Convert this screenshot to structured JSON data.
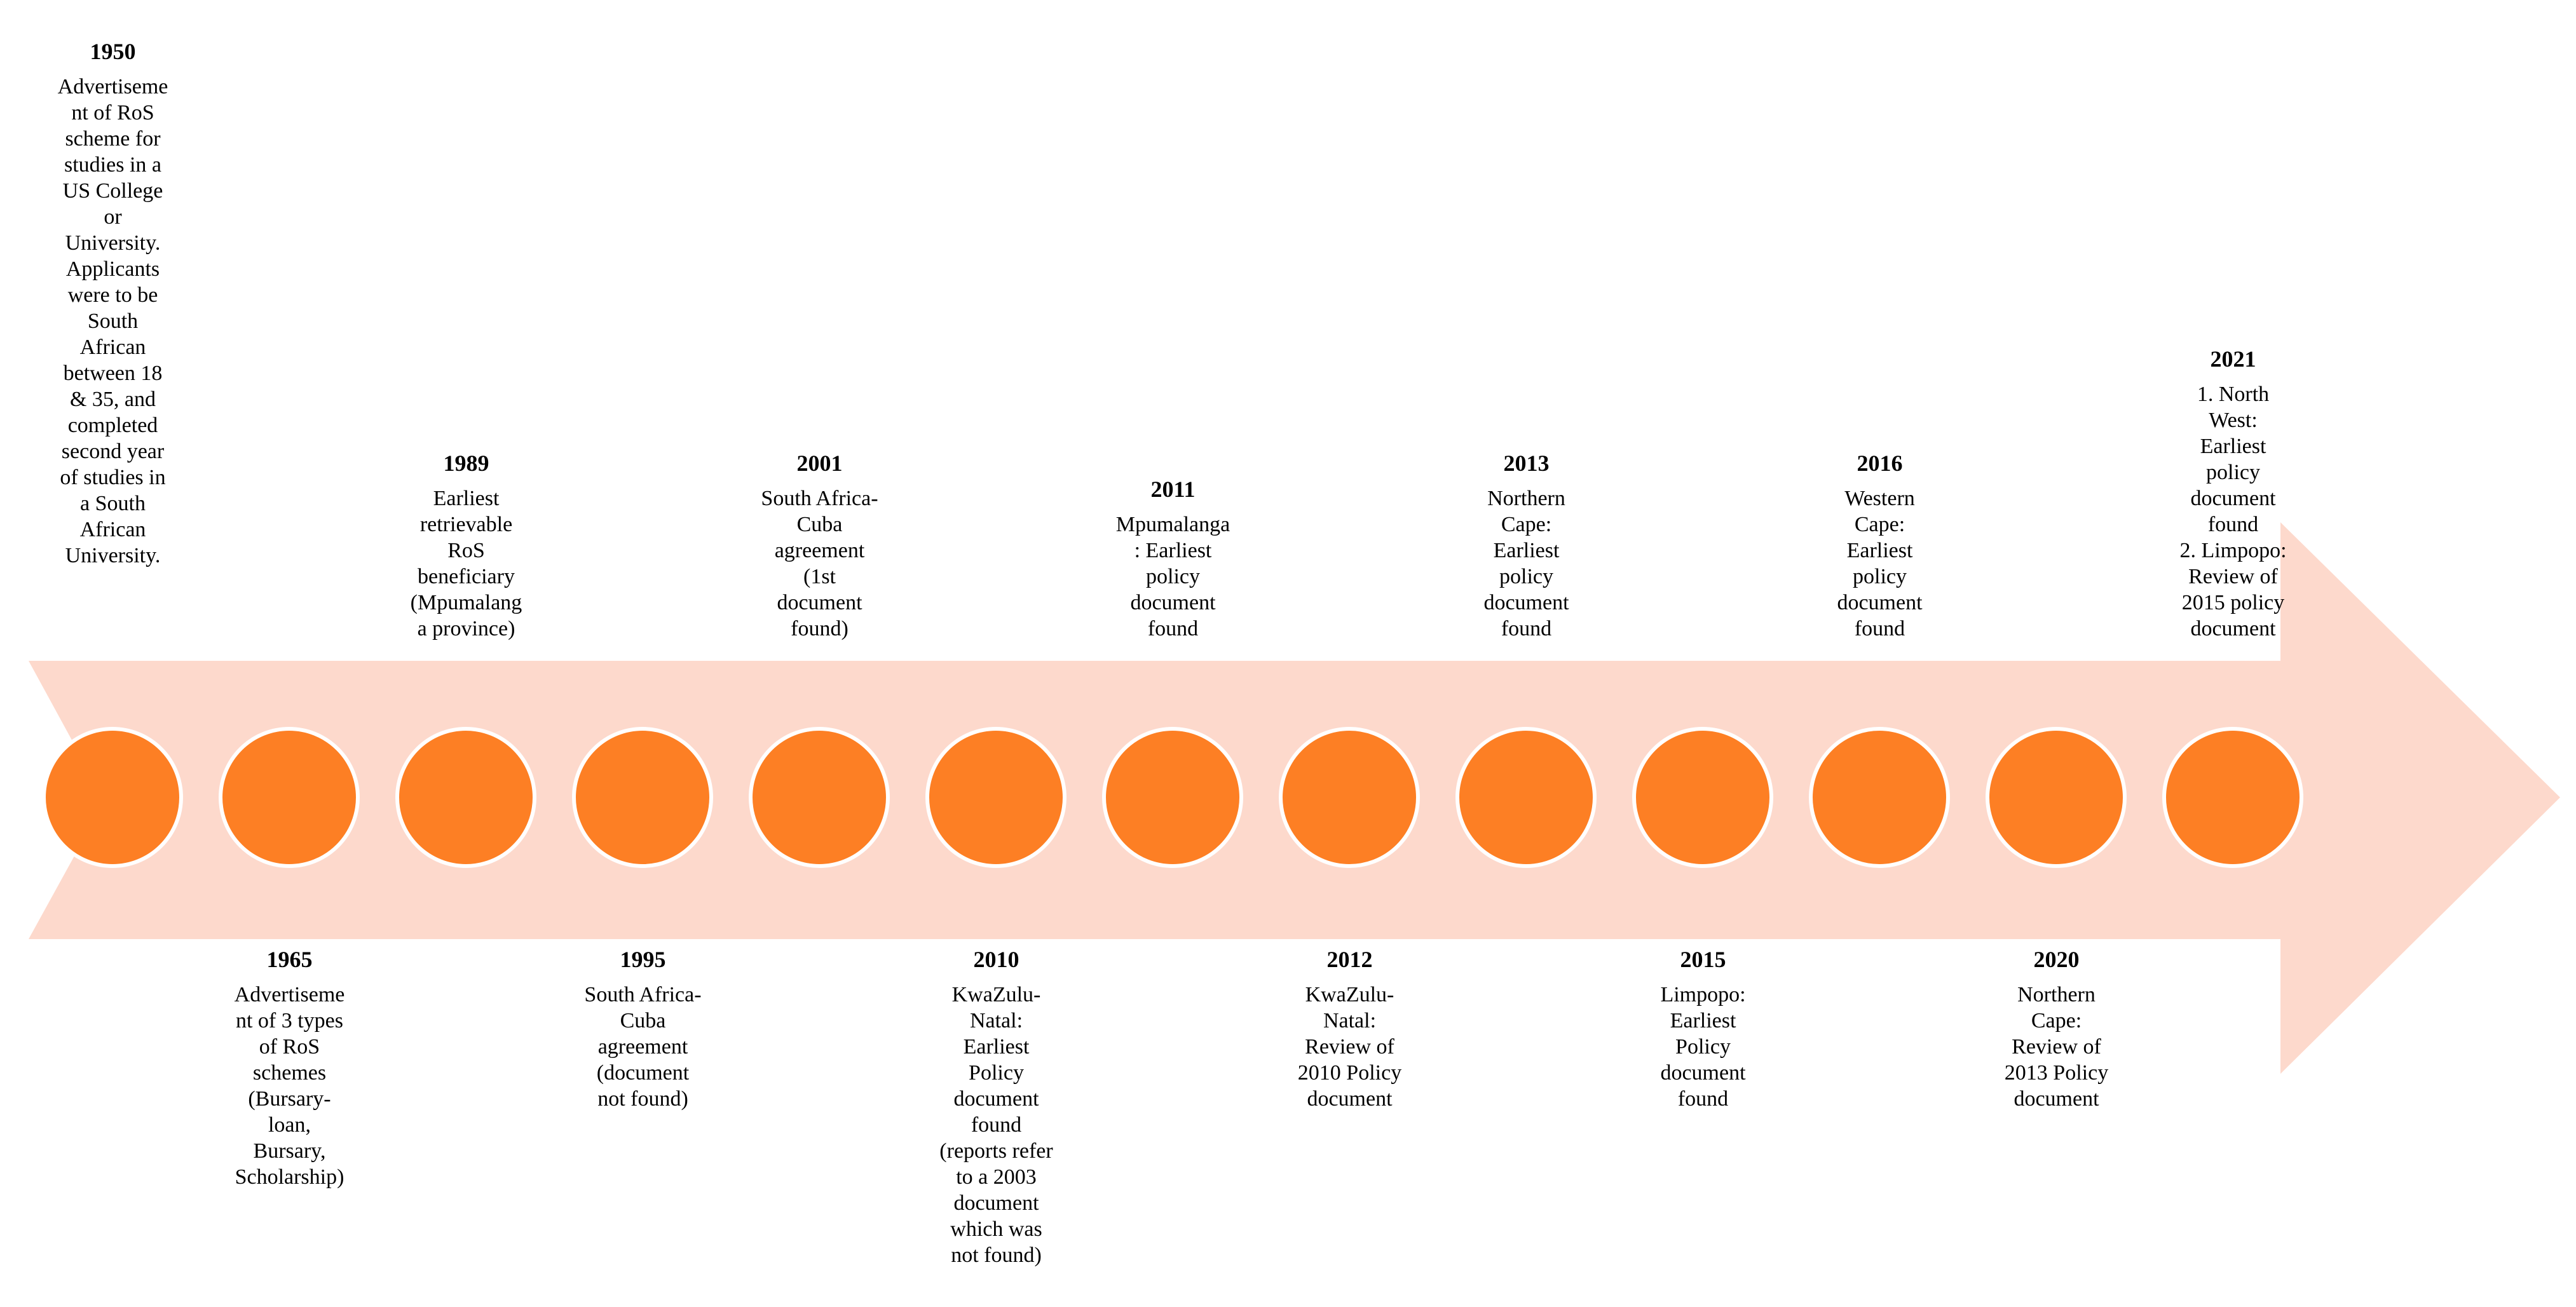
{
  "colors": {
    "arrow": "#fdd9cc",
    "node": "#fd7f24",
    "node_outline": "#ffffff",
    "text": "#000000"
  },
  "timeline": {
    "events": [
      {
        "year": "1950",
        "position": "top",
        "text": "Advertiseme\nnt of RoS\nscheme for\nstudies in a\nUS College\nor\nUniversity.\nApplicants\nwere to be\nSouth\nAfrican\nbetween 18\n& 35, and\ncompleted\nsecond year\nof studies in\na South\nAfrican\nUniversity."
      },
      {
        "year": "1965",
        "position": "bottom",
        "text": "Advertiseme\nnt of 3 types\nof RoS\nschemes\n(Bursary-\nloan,\nBursary,\nScholarship)"
      },
      {
        "year": "1989",
        "position": "top",
        "text": "Earliest\nretrievable\nRoS\nbeneficiary\n(Mpumalang\na province)"
      },
      {
        "year": "1995",
        "position": "bottom",
        "text": "South Africa-\nCuba\nagreement\n(document\nnot found)"
      },
      {
        "year": "2001",
        "position": "top",
        "text": "South Africa-\nCuba\nagreement\n(1st\ndocument\nfound)"
      },
      {
        "year": "2010",
        "position": "bottom",
        "text": "KwaZulu-\nNatal:\nEarliest\nPolicy\ndocument\nfound\n(reports refer\nto a 2003\ndocument\nwhich was\nnot found)"
      },
      {
        "year": "2011",
        "position": "top",
        "text": "Mpumalanga\n: Earliest\npolicy\ndocument\nfound"
      },
      {
        "year": "2012",
        "position": "bottom",
        "text": "KwaZulu-\nNatal:\nReview of\n2010 Policy\ndocument"
      },
      {
        "year": "2013",
        "position": "top",
        "text": "Northern\nCape:\nEarliest\npolicy\ndocument\nfound"
      },
      {
        "year": "2015",
        "position": "bottom",
        "text": "Limpopo:\nEarliest\nPolicy\ndocument\nfound"
      },
      {
        "year": "2016",
        "position": "top",
        "text": "Western\nCape:\nEarliest\npolicy\ndocument\nfound"
      },
      {
        "year": "2020",
        "position": "bottom",
        "text": "Northern\nCape:\nReview of\n2013 Policy\ndocument"
      },
      {
        "year": "2021",
        "position": "top",
        "text": "1. North\nWest:\nEarliest\npolicy\ndocument\nfound\n2. Limpopo:\nReview of\n2015 policy\ndocument"
      }
    ]
  }
}
